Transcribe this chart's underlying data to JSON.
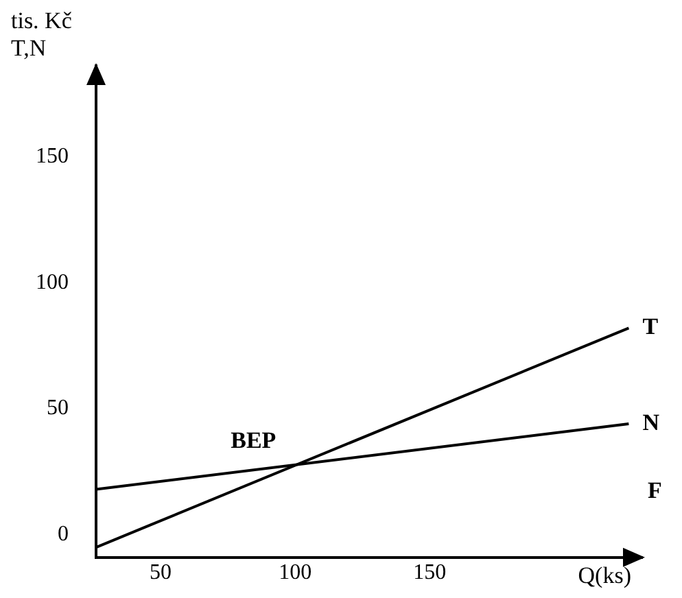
{
  "chart_data": {
    "type": "line",
    "ylabel": "tis. Kč\nT,N",
    "xlabel": "Q(ks)",
    "series": [
      {
        "name": "T",
        "color": "#000000",
        "values": [
          -5,
          82
        ]
      },
      {
        "name": "N",
        "color": "#000000",
        "values": [
          18,
          44
        ]
      }
    ],
    "annotations": [
      {
        "text": "BEP",
        "x": 98,
        "y": 27
      },
      "F"
    ],
    "x": [
      26,
      224
    ],
    "xlim": [
      26,
      229
    ],
    "xticks": [
      50,
      100,
      150
    ],
    "ylim": [
      -9,
      186
    ],
    "yticks": [
      0,
      50,
      100,
      150
    ],
    "grid": false,
    "legend": false,
    "marker": "none",
    "line_style": "solid"
  }
}
